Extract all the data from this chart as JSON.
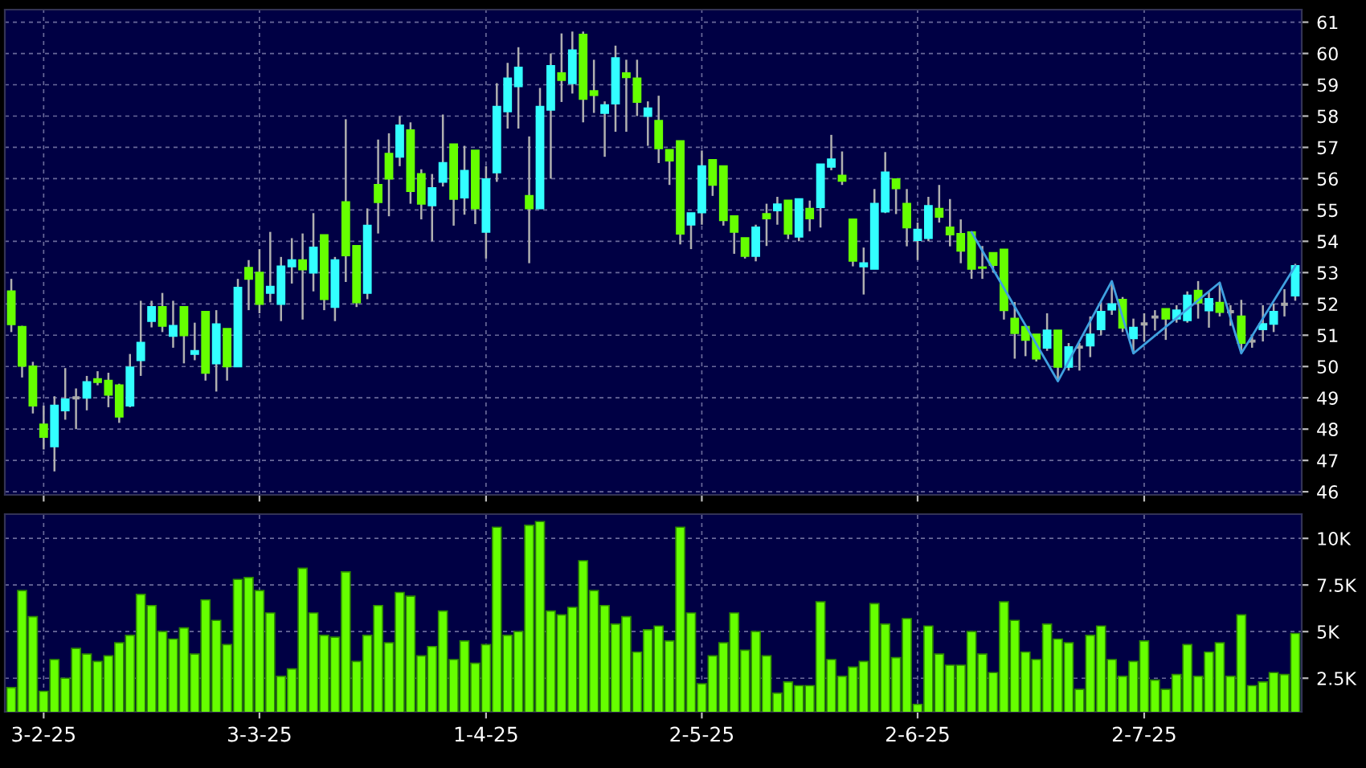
{
  "chart_data": [
    {
      "type": "candlestick",
      "categories": [
        null,
        null,
        null,
        null,
        null,
        null,
        null,
        null,
        null,
        null,
        null,
        null,
        null,
        null,
        null,
        null,
        null,
        null,
        null,
        null,
        null,
        null,
        null,
        null,
        null,
        null,
        null,
        null,
        null,
        null,
        null,
        null,
        null,
        null,
        null,
        null,
        null,
        null,
        null,
        null,
        null,
        null,
        null,
        null,
        null,
        null,
        null,
        null,
        null,
        null,
        null,
        null,
        null,
        null,
        null,
        null,
        null,
        null,
        null,
        null,
        null,
        null,
        null,
        null,
        null,
        null,
        null,
        null,
        null,
        null,
        null,
        null,
        null,
        null,
        null,
        null,
        null,
        null,
        null,
        null,
        null,
        null,
        null,
        null,
        null,
        null,
        null,
        null,
        null,
        null,
        null,
        null,
        null,
        null,
        null,
        null,
        null,
        null,
        null,
        null,
        null,
        null,
        null,
        null,
        null,
        null,
        null,
        null,
        null,
        null,
        null,
        null,
        null,
        null,
        null,
        null,
        null,
        null,
        null,
        null
      ],
      "ohlc": [
        [
          52.4,
          52.8,
          51.1,
          51.35
        ],
        [
          51.27,
          51.3,
          49.65,
          50.02
        ],
        [
          50.0,
          50.15,
          48.5,
          48.75
        ],
        [
          48.15,
          48.75,
          47.35,
          47.75
        ],
        [
          47.45,
          49.05,
          46.65,
          48.75
        ],
        [
          48.6,
          49.95,
          48.3,
          48.95
        ],
        [
          49.0,
          49.3,
          48.0,
          49.0
        ],
        [
          49.0,
          49.7,
          48.6,
          49.5
        ],
        [
          49.6,
          49.85,
          49.4,
          49.5
        ],
        [
          49.55,
          49.8,
          48.7,
          49.1
        ],
        [
          49.4,
          49.45,
          48.2,
          48.4
        ],
        [
          48.75,
          50.4,
          48.7,
          49.97
        ],
        [
          50.2,
          52.1,
          49.7,
          50.76
        ],
        [
          51.45,
          52.1,
          51.25,
          51.9
        ],
        [
          51.9,
          52.35,
          51.1,
          51.3
        ],
        [
          50.98,
          52.1,
          50.6,
          51.3
        ],
        [
          51.9,
          51.9,
          50.1,
          51.0
        ],
        [
          50.4,
          51.4,
          50.2,
          50.5
        ],
        [
          51.75,
          51.75,
          49.55,
          49.8
        ],
        [
          50.1,
          51.8,
          49.2,
          51.35
        ],
        [
          51.2,
          51.2,
          49.55,
          50.0
        ],
        [
          50.0,
          52.8,
          50.0,
          52.52
        ],
        [
          53.15,
          53.4,
          51.8,
          52.8
        ],
        [
          53.0,
          53.75,
          51.7,
          52.0
        ],
        [
          52.35,
          54.3,
          52.05,
          52.55
        ],
        [
          52.0,
          53.5,
          51.45,
          53.2
        ],
        [
          53.2,
          54.1,
          52.65,
          53.4
        ],
        [
          53.4,
          54.25,
          51.5,
          53.1
        ],
        [
          53.0,
          54.9,
          52.4,
          53.8
        ],
        [
          54.2,
          54.2,
          51.8,
          52.15
        ],
        [
          51.9,
          53.5,
          51.45,
          53.4
        ],
        [
          55.25,
          57.9,
          52.7,
          53.55
        ],
        [
          53.85,
          53.85,
          51.9,
          52.05
        ],
        [
          52.35,
          55.05,
          52.15,
          54.5
        ],
        [
          55.8,
          57.25,
          54.25,
          55.25
        ],
        [
          56.8,
          57.45,
          54.8,
          56.0
        ],
        [
          56.7,
          58.0,
          56.4,
          57.7
        ],
        [
          57.55,
          57.8,
          55.2,
          55.6
        ],
        [
          56.15,
          56.3,
          54.7,
          55.2
        ],
        [
          55.15,
          56.15,
          54.0,
          55.7
        ],
        [
          55.9,
          58.05,
          55.75,
          56.5
        ],
        [
          57.1,
          57.1,
          54.5,
          55.35
        ],
        [
          55.4,
          57.05,
          54.85,
          56.25
        ],
        [
          56.9,
          56.9,
          54.55,
          55.05
        ],
        [
          54.3,
          56.4,
          53.45,
          55.98
        ],
        [
          56.2,
          59.05,
          55.9,
          58.3
        ],
        [
          58.15,
          59.7,
          57.6,
          59.2
        ],
        [
          58.95,
          60.2,
          57.6,
          59.55
        ],
        [
          55.45,
          57.35,
          53.3,
          55.05
        ],
        [
          55.05,
          58.9,
          55.05,
          58.3
        ],
        [
          58.2,
          60.0,
          56.0,
          59.6
        ],
        [
          59.37,
          60.64,
          58.45,
          59.15
        ],
        [
          59.05,
          60.7,
          58.72,
          60.1
        ],
        [
          60.6,
          60.7,
          57.8,
          58.55
        ],
        [
          58.8,
          59.8,
          58.1,
          58.67
        ],
        [
          58.1,
          58.47,
          56.7,
          58.35
        ],
        [
          58.4,
          60.25,
          57.5,
          59.85
        ],
        [
          59.37,
          59.8,
          57.5,
          59.24
        ],
        [
          59.2,
          59.8,
          58.0,
          58.45
        ],
        [
          58.0,
          58.47,
          57.05,
          58.25
        ],
        [
          57.85,
          58.65,
          56.5,
          56.97
        ],
        [
          56.92,
          56.92,
          55.8,
          56.58
        ],
        [
          57.2,
          57.2,
          53.9,
          54.24
        ],
        [
          54.53,
          54.9,
          53.75,
          54.9
        ],
        [
          54.92,
          56.9,
          54.53,
          56.4
        ],
        [
          56.6,
          56.6,
          55.45,
          55.8
        ],
        [
          56.4,
          56.4,
          54.5,
          54.67
        ],
        [
          54.8,
          54.8,
          53.6,
          54.3
        ],
        [
          54.1,
          54.1,
          53.45,
          53.53
        ],
        [
          53.53,
          54.53,
          53.36,
          54.44
        ],
        [
          54.87,
          55.2,
          53.85,
          54.73
        ],
        [
          54.99,
          55.42,
          54.53,
          55.18
        ],
        [
          55.3,
          55.3,
          54.07,
          54.24
        ],
        [
          54.15,
          55.35,
          54.0,
          55.35
        ],
        [
          55.04,
          55.3,
          54.32,
          54.73
        ],
        [
          55.09,
          56.46,
          54.44,
          56.46
        ],
        [
          56.38,
          57.4,
          56.27,
          56.62
        ],
        [
          56.1,
          56.87,
          55.8,
          55.93
        ],
        [
          54.7,
          54.7,
          53.2,
          53.38
        ],
        [
          53.2,
          53.8,
          52.3,
          53.3
        ],
        [
          53.12,
          55.67,
          53.12,
          55.2
        ],
        [
          54.95,
          56.85,
          54.9,
          56.2
        ],
        [
          55.98,
          55.98,
          54.87,
          55.69
        ],
        [
          55.2,
          55.67,
          53.84,
          54.44
        ],
        [
          54.04,
          54.6,
          53.4,
          54.37
        ],
        [
          54.1,
          55.42,
          54.0,
          55.13
        ],
        [
          55.04,
          55.8,
          54.6,
          54.78
        ],
        [
          54.44,
          55.35,
          53.84,
          54.22
        ],
        [
          54.24,
          54.7,
          53.3,
          53.7
        ],
        [
          54.29,
          54.29,
          52.8,
          53.12
        ],
        [
          53.17,
          53.85,
          52.8,
          53.15
        ],
        [
          53.63,
          53.63,
          53.0,
          53.24
        ],
        [
          53.74,
          53.74,
          51.5,
          51.8
        ],
        [
          51.53,
          52.06,
          50.25,
          51.07
        ],
        [
          51.27,
          51.27,
          50.33,
          50.85
        ],
        [
          51.02,
          51.02,
          50.16,
          50.25
        ],
        [
          50.6,
          51.7,
          50.5,
          51.15
        ],
        [
          51.15,
          51.15,
          49.53,
          49.99
        ],
        [
          49.99,
          50.75,
          49.87,
          50.62
        ],
        [
          50.62,
          50.75,
          49.87,
          50.62
        ],
        [
          50.67,
          51.6,
          50.3,
          51.02
        ],
        [
          51.19,
          52.05,
          51.0,
          51.75
        ],
        [
          51.82,
          52.73,
          51.65,
          51.99
        ],
        [
          52.13,
          52.22,
          51.1,
          51.24
        ],
        [
          50.9,
          51.53,
          50.42,
          51.24
        ],
        [
          51.36,
          51.7,
          50.8,
          51.36
        ],
        [
          51.58,
          51.8,
          51.15,
          51.58
        ],
        [
          51.84,
          51.84,
          50.85,
          51.53
        ],
        [
          51.53,
          51.96,
          51.4,
          51.79
        ],
        [
          51.48,
          52.4,
          51.4,
          52.27
        ],
        [
          52.42,
          52.73,
          51.53,
          52.04
        ],
        [
          51.79,
          52.4,
          51.24,
          52.16
        ],
        [
          52.04,
          52.68,
          51.6,
          51.74
        ],
        [
          51.75,
          51.96,
          51.3,
          51.75
        ],
        [
          51.6,
          52.13,
          50.42,
          50.75
        ],
        [
          50.81,
          51.02,
          50.6,
          50.81
        ],
        [
          51.19,
          51.96,
          50.8,
          51.36
        ],
        [
          51.36,
          52.01,
          51.1,
          51.75
        ],
        [
          51.99,
          52.47,
          51.6,
          51.99
        ],
        [
          52.27,
          53.28,
          52.1,
          53.21
        ]
      ],
      "colors": [
        "#66ff00",
        "#66ff00",
        "#66ff00",
        "#66ff00",
        "#33ffff",
        "#33ffff",
        "#aaaaaa",
        "#33ffff",
        "#66ff00",
        "#66ff00",
        "#66ff00",
        "#33ffff",
        "#33ffff",
        "#33ffff",
        "#66ff00",
        "#33ffff",
        "#66ff00",
        "#33ffff",
        "#66ff00",
        "#33ffff",
        "#66ff00",
        "#33ffff",
        "#66ff00",
        "#66ff00",
        "#33ffff",
        "#33ffff",
        "#33ffff",
        "#66ff00",
        "#33ffff",
        "#66ff00",
        "#33ffff",
        "#66ff00",
        "#66ff00",
        "#33ffff",
        "#66ff00",
        "#66ff00",
        "#33ffff",
        "#66ff00",
        "#66ff00",
        "#33ffff",
        "#33ffff",
        "#66ff00",
        "#33ffff",
        "#66ff00",
        "#33ffff",
        "#33ffff",
        "#33ffff",
        "#33ffff",
        "#66ff00",
        "#33ffff",
        "#33ffff",
        "#66ff00",
        "#33ffff",
        "#66ff00",
        "#66ff00",
        "#33ffff",
        "#33ffff",
        "#66ff00",
        "#66ff00",
        "#33ffff",
        "#66ff00",
        "#66ff00",
        "#66ff00",
        "#33ffff",
        "#33ffff",
        "#66ff00",
        "#66ff00",
        "#66ff00",
        "#66ff00",
        "#33ffff",
        "#66ff00",
        "#33ffff",
        "#66ff00",
        "#33ffff",
        "#66ff00",
        "#33ffff",
        "#33ffff",
        "#66ff00",
        "#66ff00",
        "#33ffff",
        "#33ffff",
        "#33ffff",
        "#66ff00",
        "#66ff00",
        "#33ffff",
        "#33ffff",
        "#66ff00",
        "#66ff00",
        "#66ff00",
        "#66ff00",
        "#66ff00",
        "#66ff00",
        "#66ff00",
        "#66ff00",
        "#66ff00",
        "#66ff00",
        "#33ffff",
        "#66ff00",
        "#33ffff",
        "#aaaaaa",
        "#33ffff",
        "#33ffff",
        "#33ffff",
        "#66ff00",
        "#33ffff",
        "#aaaaaa",
        "#aaaaaa",
        "#66ff00",
        "#33ffff",
        "#33ffff",
        "#66ff00",
        "#33ffff",
        "#66ff00",
        "#aaaaaa",
        "#66ff00",
        "#aaaaaa",
        "#33ffff",
        "#33ffff",
        "#aaaaaa",
        "#33ffff"
      ],
      "series": [
        {
          "type": "line",
          "color": "#3fa0e0",
          "values": [
            null,
            null,
            null,
            null,
            null,
            null,
            null,
            null,
            null,
            null,
            null,
            null,
            null,
            null,
            null,
            null,
            null,
            null,
            null,
            null,
            null,
            null,
            null,
            null,
            null,
            null,
            null,
            null,
            null,
            null,
            null,
            null,
            null,
            null,
            null,
            null,
            null,
            null,
            null,
            null,
            null,
            null,
            null,
            null,
            null,
            null,
            null,
            null,
            null,
            null,
            null,
            null,
            null,
            null,
            null,
            null,
            null,
            null,
            null,
            null,
            null,
            null,
            null,
            null,
            null,
            null,
            null,
            null,
            null,
            null,
            null,
            null,
            null,
            null,
            null,
            null,
            null,
            null,
            null,
            null,
            null,
            null,
            null,
            null,
            null,
            null,
            null,
            null,
            null,
            54.29,
            null,
            null,
            null,
            null,
            null,
            null,
            null,
            49.53,
            null,
            null,
            null,
            null,
            52.73,
            null,
            50.42,
            null,
            null,
            null,
            null,
            null,
            null,
            null,
            52.68,
            null,
            50.42,
            null,
            null,
            null,
            null,
            53.21
          ]
        }
      ],
      "ylim": [
        45.9,
        61.4
      ],
      "yticks": [
        46,
        47,
        48,
        49,
        50,
        51,
        52,
        53,
        54,
        55,
        56,
        57,
        58,
        59,
        60,
        61
      ],
      "grid": true,
      "tick_labels": "y"
    },
    {
      "type": "bar",
      "categories": [
        null,
        null,
        null,
        "3-2-25",
        null,
        null,
        null,
        null,
        null,
        null,
        null,
        null,
        null,
        null,
        null,
        null,
        null,
        null,
        null,
        null,
        null,
        null,
        null,
        "3-3-25",
        null,
        null,
        null,
        null,
        null,
        null,
        null,
        null,
        null,
        null,
        null,
        null,
        null,
        null,
        null,
        null,
        null,
        null,
        null,
        null,
        "1-4-25",
        null,
        null,
        null,
        null,
        null,
        null,
        null,
        null,
        null,
        null,
        null,
        null,
        null,
        null,
        null,
        null,
        null,
        null,
        null,
        "2-5-25",
        null,
        null,
        null,
        null,
        null,
        null,
        null,
        null,
        null,
        null,
        null,
        null,
        null,
        null,
        null,
        null,
        null,
        null,
        null,
        "2-6-25",
        null,
        null,
        null,
        null,
        null,
        null,
        null,
        null,
        null,
        null,
        null,
        null,
        null,
        null,
        null,
        null,
        null,
        null,
        null,
        null,
        "2-7-25",
        null,
        null,
        null,
        null,
        null,
        null,
        null,
        null,
        null,
        null,
        null,
        null,
        null,
        null
      ],
      "values": [
        2.0,
        7.2,
        5.8,
        1.8,
        3.5,
        2.5,
        4.1,
        3.8,
        3.4,
        3.7,
        4.4,
        4.8,
        7.0,
        6.4,
        5.0,
        4.6,
        5.2,
        3.8,
        6.7,
        5.6,
        4.3,
        7.8,
        7.9,
        7.2,
        6.0,
        2.6,
        3.0,
        8.4,
        6.0,
        4.8,
        4.7,
        8.2,
        3.4,
        4.8,
        6.4,
        4.4,
        7.1,
        6.9,
        3.7,
        4.2,
        6.1,
        3.5,
        4.5,
        3.3,
        4.3,
        10.6,
        4.8,
        5.0,
        10.7,
        10.9,
        6.1,
        5.9,
        6.3,
        8.8,
        7.2,
        6.4,
        5.4,
        5.8,
        3.9,
        5.1,
        5.3,
        4.5,
        10.6,
        6.0,
        2.2,
        3.7,
        4.4,
        6.0,
        4.0,
        5.0,
        3.7,
        1.7,
        2.3,
        2.1,
        2.1,
        6.6,
        3.5,
        2.6,
        3.1,
        3.4,
        6.5,
        5.4,
        3.6,
        5.7,
        1.1,
        5.3,
        3.8,
        3.2,
        3.2,
        5.0,
        3.8,
        2.8,
        6.6,
        5.6,
        3.9,
        3.5,
        5.4,
        4.6,
        4.4,
        1.9,
        4.8,
        5.3,
        3.5,
        2.6,
        3.4,
        4.5,
        2.4,
        1.9,
        2.7,
        4.3,
        2.6,
        3.9,
        4.4,
        2.6,
        5.9,
        2.1,
        2.3,
        2.8,
        2.7,
        4.9
      ],
      "color": "#66ff00",
      "ylim": [
        0.7,
        11.3
      ],
      "yticks": [
        {
          "value": 2.5,
          "label": "2.5K"
        },
        {
          "value": 5,
          "label": "5K"
        },
        {
          "value": 7.5,
          "label": "7.5K"
        },
        {
          "value": 10,
          "label": "10K"
        }
      ],
      "grid": true
    }
  ]
}
